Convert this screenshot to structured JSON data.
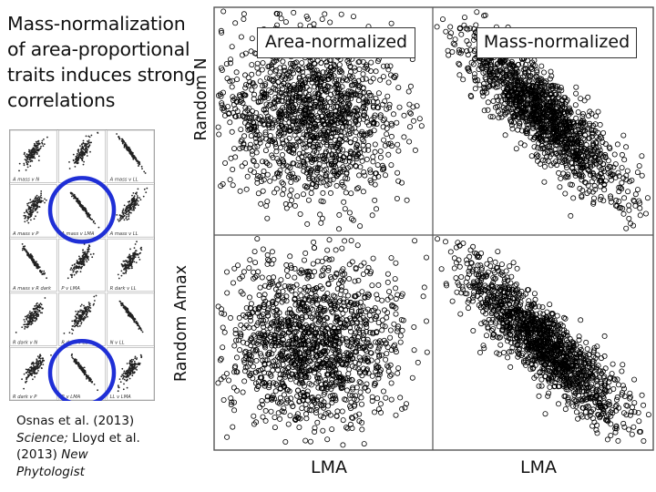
{
  "slide": {
    "title_lines": [
      "Mass-normalization",
      "of area-proportional",
      "traits induces strong",
      "correlations"
    ],
    "citation": {
      "line1": "Osnas et al. (2013)",
      "line2_italic": "Science;",
      "line2_rest": " Lloyd et al.",
      "line3": "(2013) ",
      "line3_italic": "New",
      "line4_italic": "Phytologist"
    },
    "highlight_color": "#1f2fd6"
  },
  "thumbnail_grid": {
    "labels": [
      [
        "A mass v N",
        "",
        "A mass v LL"
      ],
      [
        "A mass v P",
        "A mass v LMA",
        "A mass v LL"
      ],
      [
        "A mass v R dark",
        "P v LMA",
        "R dark v LL"
      ],
      [
        "R dark v N",
        "R dark v LL",
        "N v LL"
      ],
      [
        "R dark v P",
        "R v LMA",
        "LL v LMA"
      ]
    ],
    "highlighted": [
      [
        1,
        1
      ],
      [
        4,
        1
      ]
    ]
  },
  "chart_data": {
    "type": "scatter",
    "layout": "2x2",
    "panel_titles": [
      "Area-normalized",
      "Mass-normalized"
    ],
    "ylabels": [
      "Random N",
      "Random Amax"
    ],
    "xlabels": [
      "LMA",
      "LMA"
    ],
    "panels": [
      {
        "row": 0,
        "col": 0,
        "name": "Random N vs LMA (area-normalized)",
        "correlation": 0.0,
        "n_points": 1500
      },
      {
        "row": 0,
        "col": 1,
        "name": "Random N vs LMA (mass-normalized)",
        "correlation": -0.85,
        "n_points": 1500
      },
      {
        "row": 1,
        "col": 0,
        "name": "Random Amax vs LMA (area-normalized)",
        "correlation": 0.0,
        "n_points": 1500
      },
      {
        "row": 1,
        "col": 1,
        "name": "Random Amax vs LMA (mass-normalized)",
        "correlation": -0.85,
        "n_points": 1500
      }
    ],
    "marker": "open-circle",
    "grid": false
  }
}
